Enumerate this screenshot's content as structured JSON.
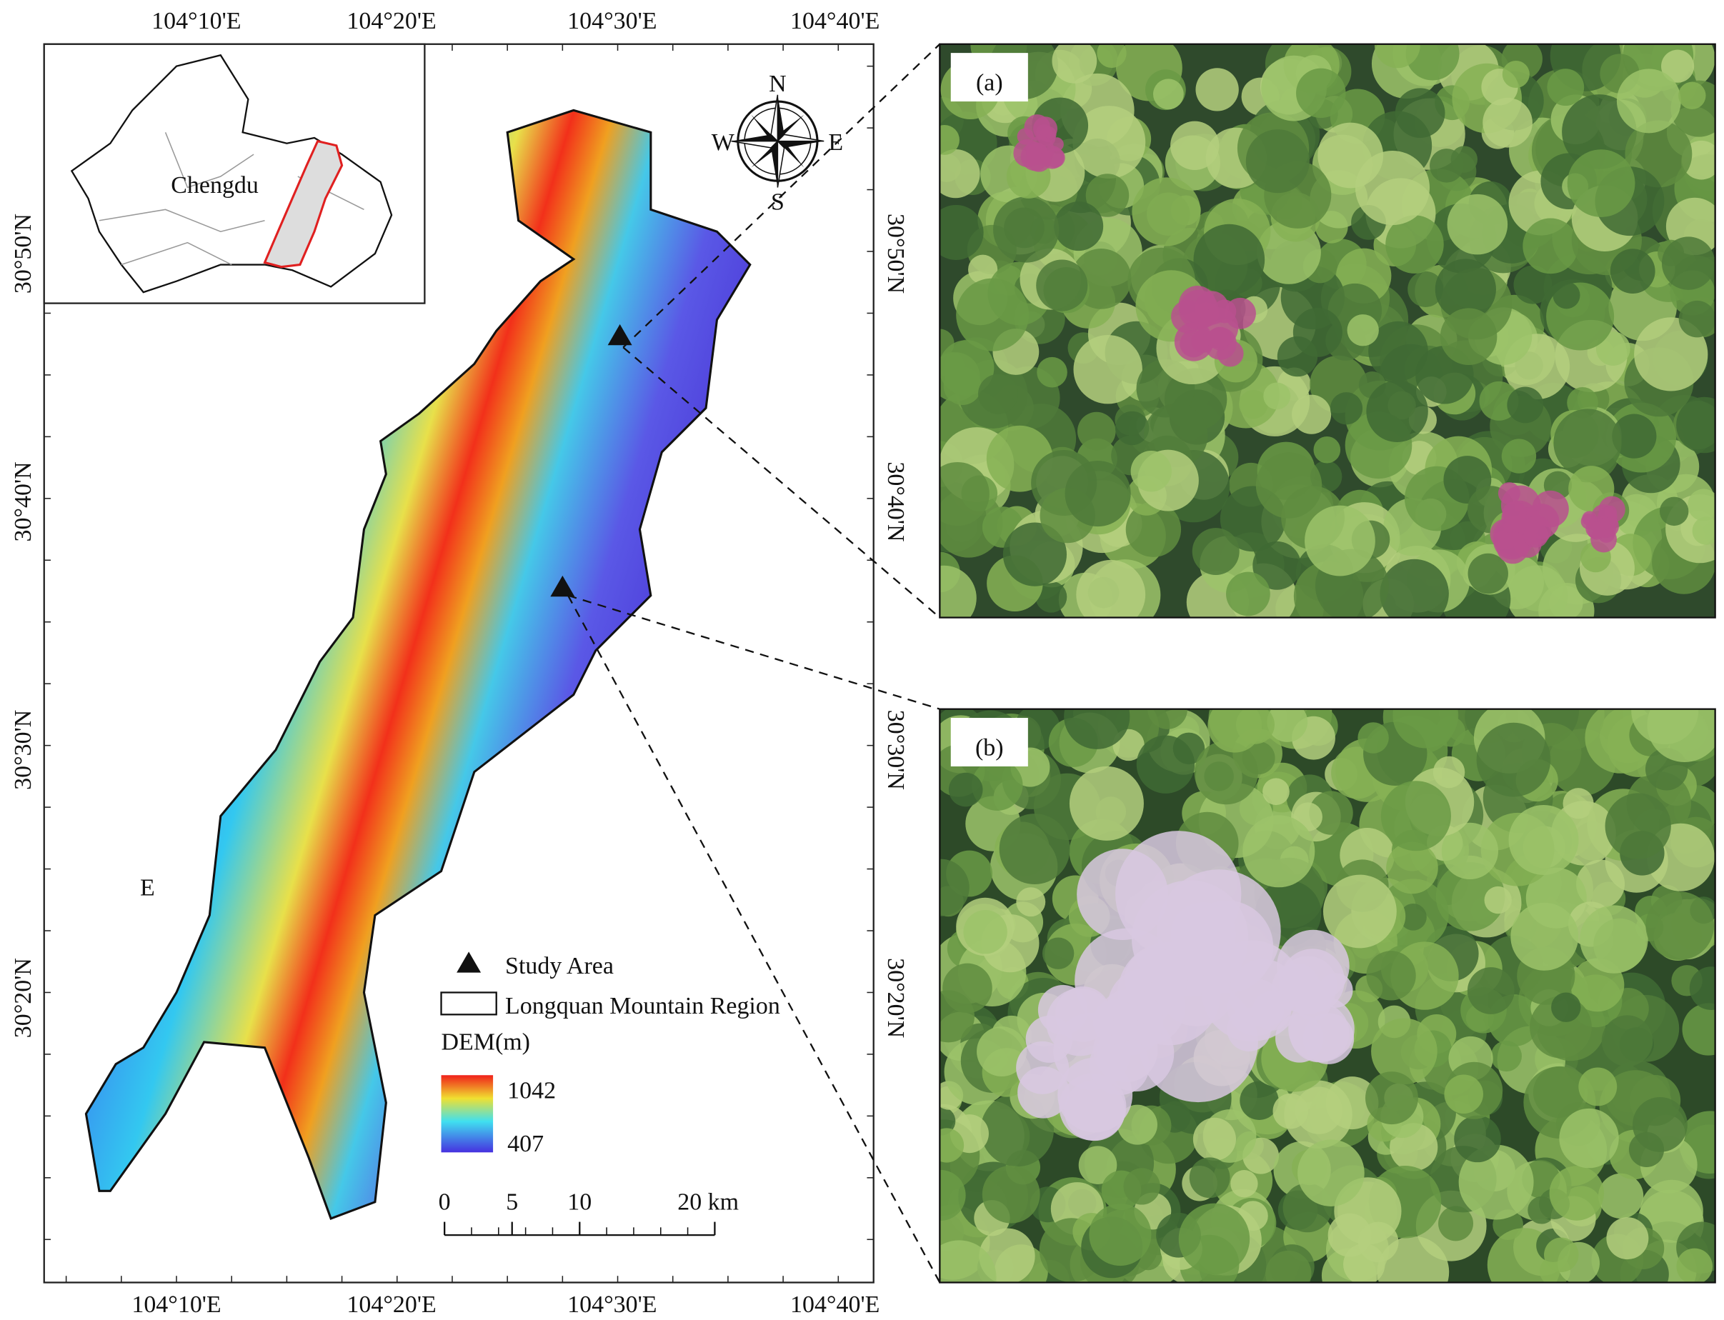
{
  "map": {
    "top_labels": [
      "104°10'E",
      "104°20'E",
      "104°30'E",
      "104°40'E"
    ],
    "bottom_labels": [
      "104°10'E",
      "104°20'E",
      "104°30'E",
      "104°40'E"
    ],
    "left_labels": [
      "30°50'N",
      "30°40'N",
      "30°30'N",
      "30°20'N"
    ],
    "right_labels": [
      "30°50'N",
      "30°40'N",
      "30°30'N",
      "30°20'N"
    ],
    "inset_label": "Chengdu",
    "compass": {
      "n": "N",
      "s": "S",
      "e": "E",
      "w": "W"
    },
    "region_label": "E",
    "legend": {
      "study_area": "Study Area",
      "region": "Longquan Mountain Region",
      "dem_title": "DEM(m)",
      "dem_max": 1042,
      "dem_min": 407
    },
    "scale_bar": {
      "ticks": [
        0,
        5,
        10,
        {
          "value": 20,
          "label": "20 km"
        }
      ]
    }
  },
  "panels": [
    "(a)",
    "(b)"
  ]
}
